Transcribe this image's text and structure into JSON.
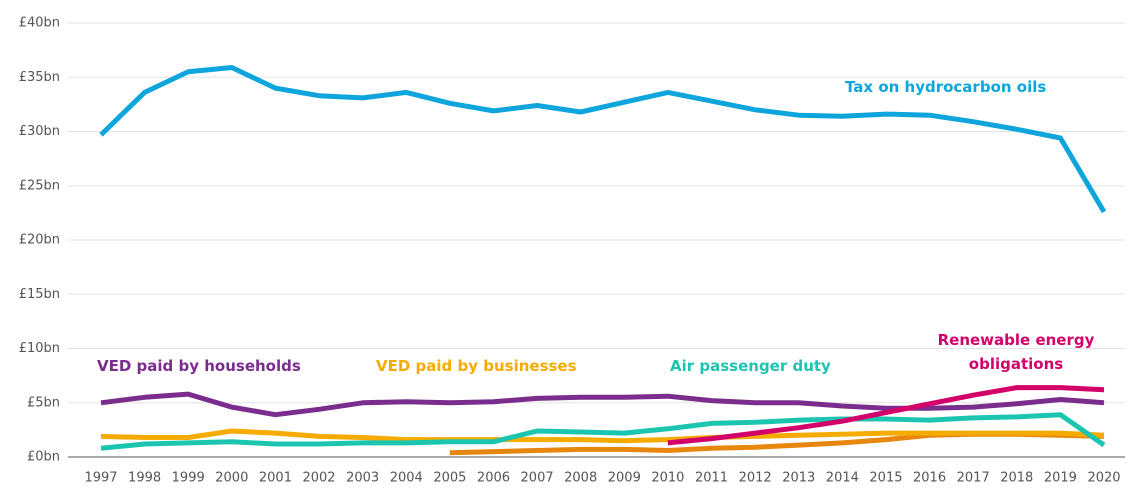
{
  "chart_data": {
    "type": "line",
    "x": [
      1997,
      1998,
      1999,
      2000,
      2001,
      2002,
      2003,
      2004,
      2005,
      2006,
      2007,
      2008,
      2009,
      2010,
      2011,
      2012,
      2013,
      2014,
      2015,
      2016,
      2017,
      2018,
      2019,
      2020
    ],
    "series": [
      {
        "name": "Tax on hydrocarbon oils",
        "color": "#0ea5dc",
        "values": [
          29.7,
          33.6,
          35.5,
          35.9,
          34.0,
          33.3,
          33.1,
          33.6,
          32.6,
          31.9,
          32.4,
          31.8,
          32.7,
          33.6,
          32.8,
          32.0,
          31.5,
          31.4,
          31.6,
          31.5,
          30.9,
          30.2,
          29.4,
          22.6
        ]
      },
      {
        "color": "#e8870e",
        "values": [
          null,
          null,
          null,
          null,
          null,
          null,
          null,
          null,
          0.4,
          0.5,
          0.6,
          0.7,
          0.7,
          0.6,
          0.8,
          0.9,
          1.1,
          1.3,
          1.6,
          2.0,
          2.1,
          2.1,
          2.0,
          1.9
        ]
      },
      {
        "name": "VED paid by households",
        "color": "#7b2d8e",
        "values": [
          5.0,
          5.5,
          5.8,
          4.6,
          3.9,
          4.4,
          5.0,
          5.1,
          5.0,
          5.1,
          5.4,
          5.5,
          5.5,
          5.6,
          5.2,
          5.0,
          5.0,
          4.7,
          4.5,
          4.5,
          4.6,
          4.9,
          5.3,
          5.0
        ]
      },
      {
        "name": "VED paid by businesses",
        "color": "#f5ab00",
        "values": [
          1.9,
          1.8,
          1.8,
          2.4,
          2.2,
          1.9,
          1.8,
          1.6,
          1.6,
          1.6,
          1.6,
          1.6,
          1.5,
          1.6,
          1.8,
          1.9,
          2.0,
          2.1,
          2.2,
          2.2,
          2.2,
          2.2,
          2.2,
          2.0
        ]
      },
      {
        "name": "Air passenger duty",
        "color": "#1cc5b0",
        "values": [
          0.8,
          1.2,
          1.3,
          1.4,
          1.2,
          1.2,
          1.3,
          1.3,
          1.4,
          1.4,
          2.4,
          2.3,
          2.2,
          2.6,
          3.1,
          3.2,
          3.4,
          3.5,
          3.5,
          3.4,
          3.6,
          3.7,
          3.9,
          1.1
        ]
      },
      {
        "name": "Renewable energy obligations",
        "color": "#d4006a",
        "values": [
          null,
          null,
          null,
          null,
          null,
          null,
          null,
          null,
          null,
          null,
          null,
          null,
          null,
          1.3,
          1.7,
          2.2,
          2.7,
          3.3,
          4.1,
          4.9,
          5.7,
          6.4,
          6.4,
          6.2
        ]
      }
    ],
    "ylim": [
      0,
      40
    ],
    "yticks": [
      {
        "value": 0,
        "label": "£0bn"
      },
      {
        "value": 5,
        "label": "£5bn"
      },
      {
        "value": 10,
        "label": "£10bn"
      },
      {
        "value": 15,
        "label": "£15bn"
      },
      {
        "value": 20,
        "label": "£20bn"
      },
      {
        "value": 25,
        "label": "£25bn"
      },
      {
        "value": 30,
        "label": "£30bn"
      },
      {
        "value": 35,
        "label": "£35bn"
      },
      {
        "value": 40,
        "label": "£40bn"
      }
    ],
    "grid": true
  }
}
